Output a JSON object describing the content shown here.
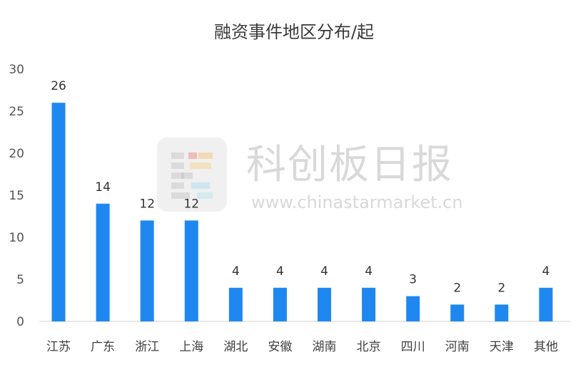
{
  "chart_data": {
    "type": "bar",
    "title": "融资事件地区分布/起",
    "xlabel": "",
    "ylabel": "",
    "categories": [
      "江苏",
      "广东",
      "浙江",
      "上海",
      "湖北",
      "安徽",
      "湖南",
      "北京",
      "四川",
      "河南",
      "天津",
      "其他"
    ],
    "values": [
      26,
      14,
      12,
      12,
      4,
      4,
      4,
      4,
      3,
      2,
      2,
      4
    ],
    "ylim": [
      0,
      30
    ],
    "yticks": [
      0,
      5,
      10,
      15,
      20,
      25,
      30
    ],
    "grid": false,
    "legend": "none",
    "bar_color": "#1e88f0",
    "axis_color": "#d0d0d0"
  },
  "watermark": {
    "text": "科创板日报",
    "url": "www.chinastarmarket.cn",
    "colors": [
      "#f25c4a",
      "#f7b14a",
      "#f7c96a",
      "#8fd0ef",
      "#a7dcf4",
      "#7fc7ee",
      "#b4b4b4"
    ]
  }
}
